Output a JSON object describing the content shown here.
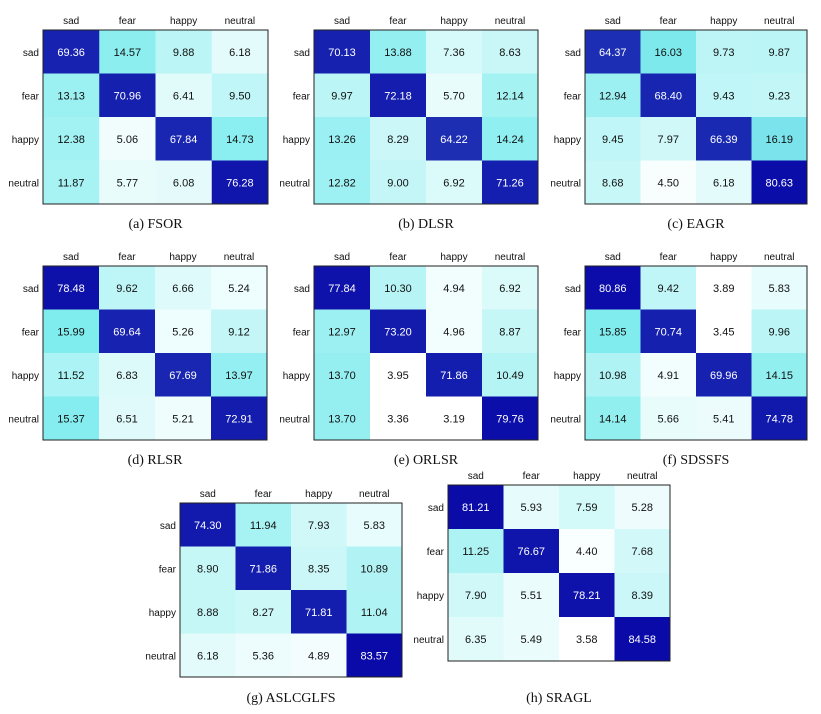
{
  "chart_data": [
    {
      "type": "heatmap",
      "caption": "(a)  FSOR",
      "categories": [
        "sad",
        "fear",
        "happy",
        "neutral"
      ],
      "rows": [
        "sad",
        "fear",
        "happy",
        "neutral"
      ],
      "values": [
        [
          69.36,
          14.57,
          9.88,
          6.18
        ],
        [
          13.13,
          70.96,
          6.41,
          9.5
        ],
        [
          12.38,
          5.06,
          67.84,
          14.73
        ],
        [
          11.87,
          5.77,
          6.08,
          76.28
        ]
      ],
      "labels": [
        [
          "69.36",
          "14.57",
          "9.88",
          "6.18"
        ],
        [
          "13.13",
          "70.96",
          "6.41",
          "9.50"
        ],
        [
          "12.38",
          "5.06",
          "67.84",
          "14.73"
        ],
        [
          "11.87",
          "5.77",
          "6.08",
          "76.28"
        ]
      ]
    },
    {
      "type": "heatmap",
      "caption": "(b)  DLSR",
      "categories": [
        "sad",
        "fear",
        "happy",
        "neutral"
      ],
      "rows": [
        "sad",
        "fear",
        "happy",
        "neutral"
      ],
      "values": [
        [
          70.13,
          13.88,
          7.36,
          8.63
        ],
        [
          9.97,
          72.18,
          5.7,
          12.14
        ],
        [
          13.26,
          8.29,
          64.22,
          14.24
        ],
        [
          12.82,
          9.0,
          6.92,
          71.26
        ]
      ],
      "labels": [
        [
          "70.13",
          "13.88",
          "7.36",
          "8.63"
        ],
        [
          "9.97",
          "72.18",
          "5.70",
          "12.14"
        ],
        [
          "13.26",
          "8.29",
          "64.22",
          "14.24"
        ],
        [
          "12.82",
          "9.00",
          "6.92",
          "71.26"
        ]
      ]
    },
    {
      "type": "heatmap",
      "caption": "(c)  EAGR",
      "categories": [
        "sad",
        "fear",
        "happy",
        "neutral"
      ],
      "rows": [
        "sad",
        "fear",
        "happy",
        "neutral"
      ],
      "values": [
        [
          64.37,
          16.03,
          9.73,
          9.87
        ],
        [
          12.94,
          68.4,
          9.43,
          9.23
        ],
        [
          9.45,
          7.97,
          66.39,
          16.19
        ],
        [
          8.68,
          4.5,
          6.18,
          80.63
        ]
      ],
      "labels": [
        [
          "64.37",
          "16.03",
          "9.73",
          "9.87"
        ],
        [
          "12.94",
          "68.40",
          "9.43",
          "9.23"
        ],
        [
          "9.45",
          "7.97",
          "66.39",
          "16.19"
        ],
        [
          "8.68",
          "4.50",
          "6.18",
          "80.63"
        ]
      ]
    },
    {
      "type": "heatmap",
      "caption": "(d)  RLSR",
      "categories": [
        "sad",
        "fear",
        "happy",
        "neutral"
      ],
      "rows": [
        "sad",
        "fear",
        "happy",
        "neutral"
      ],
      "values": [
        [
          78.48,
          9.62,
          6.66,
          5.24
        ],
        [
          15.99,
          69.64,
          5.26,
          9.12
        ],
        [
          11.52,
          6.83,
          67.69,
          13.97
        ],
        [
          15.37,
          6.51,
          5.21,
          72.91
        ]
      ],
      "labels": [
        [
          "78.48",
          "9.62",
          "6.66",
          "5.24"
        ],
        [
          "15.99",
          "69.64",
          "5.26",
          "9.12"
        ],
        [
          "11.52",
          "6.83",
          "67.69",
          "13.97"
        ],
        [
          "15.37",
          "6.51",
          "5.21",
          "72.91"
        ]
      ]
    },
    {
      "type": "heatmap",
      "caption": "(e)  ORLSR",
      "categories": [
        "sad",
        "fear",
        "happy",
        "neutral"
      ],
      "rows": [
        "sad",
        "fear",
        "happy",
        "neutral"
      ],
      "values": [
        [
          77.84,
          10.3,
          4.94,
          6.92
        ],
        [
          12.97,
          73.2,
          4.96,
          8.87
        ],
        [
          13.7,
          3.95,
          71.86,
          10.49
        ],
        [
          13.7,
          3.36,
          3.19,
          79.76
        ]
      ],
      "labels": [
        [
          "77.84",
          "10.30",
          "4.94",
          "6.92"
        ],
        [
          "12.97",
          "73.20",
          "4.96",
          "8.87"
        ],
        [
          "13.70",
          "3.95",
          "71.86",
          "10.49"
        ],
        [
          "13.70",
          "3.36",
          "3.19",
          "79.76"
        ]
      ]
    },
    {
      "type": "heatmap",
      "caption": "(f)  SDSSFS",
      "categories": [
        "sad",
        "fear",
        "happy",
        "neutral"
      ],
      "rows": [
        "sad",
        "fear",
        "happy",
        "neutral"
      ],
      "values": [
        [
          80.86,
          9.42,
          3.89,
          5.83
        ],
        [
          15.85,
          70.74,
          3.45,
          9.96
        ],
        [
          10.98,
          4.91,
          69.96,
          14.15
        ],
        [
          14.14,
          5.66,
          5.41,
          74.78
        ]
      ],
      "labels": [
        [
          "80.86",
          "9.42",
          "3.89",
          "5.83"
        ],
        [
          "15.85",
          "70.74",
          "3.45",
          "9.96"
        ],
        [
          "10.98",
          "4.91",
          "69.96",
          "14.15"
        ],
        [
          "14.14",
          "5.66",
          "5.41",
          "74.78"
        ]
      ]
    },
    {
      "type": "heatmap",
      "caption": "(g)  ASLCGLFS",
      "categories": [
        "sad",
        "fear",
        "happy",
        "neutral"
      ],
      "rows": [
        "sad",
        "fear",
        "happy",
        "neutral"
      ],
      "values": [
        [
          74.3,
          11.94,
          7.93,
          5.83
        ],
        [
          8.9,
          71.86,
          8.35,
          10.89
        ],
        [
          8.88,
          8.27,
          71.81,
          11.04
        ],
        [
          6.18,
          5.36,
          4.89,
          83.57
        ]
      ],
      "labels": [
        [
          "74.30",
          "11.94",
          "7.93",
          "5.83"
        ],
        [
          "8.90",
          "71.86",
          "8.35",
          "10.89"
        ],
        [
          "8.88",
          "8.27",
          "71.81",
          "11.04"
        ],
        [
          "6.18",
          "5.36",
          "4.89",
          "83.57"
        ]
      ]
    },
    {
      "type": "heatmap",
      "caption": "(h)  SRAGL",
      "categories": [
        "sad",
        "fear",
        "happy",
        "neutral"
      ],
      "rows": [
        "sad",
        "fear",
        "happy",
        "neutral"
      ],
      "values": [
        [
          81.21,
          5.93,
          7.59,
          5.28
        ],
        [
          11.25,
          76.67,
          4.4,
          7.68
        ],
        [
          7.9,
          5.51,
          78.21,
          8.39
        ],
        [
          6.35,
          5.49,
          3.58,
          84.58
        ]
      ],
      "labels": [
        [
          "81.21",
          "5.93",
          "7.59",
          "5.28"
        ],
        [
          "11.25",
          "76.67",
          "4.40",
          "7.68"
        ],
        [
          "7.90",
          "5.51",
          "78.21",
          "8.39"
        ],
        [
          "6.35",
          "5.49",
          "3.58",
          "84.58"
        ]
      ]
    }
  ],
  "colors": {
    "low": "#ffffff",
    "mid": "#7fecee",
    "high": "#0a0aa8",
    "light_text": "#ffffff",
    "dark_text": "#111111",
    "caption_text": "#111111",
    "border": "#222222"
  }
}
